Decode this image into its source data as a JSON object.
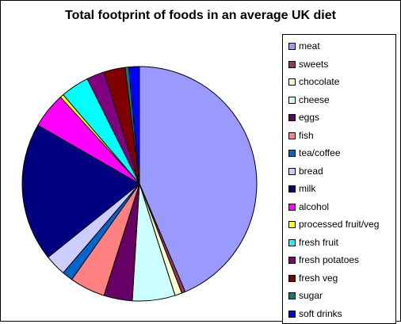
{
  "chart_data": {
    "type": "pie",
    "title": "Total footprint of foods in an average UK diet",
    "legend_position": "right",
    "slices": [
      {
        "label": "meat",
        "value": 44.5,
        "color": "#9999ff"
      },
      {
        "label": "sweets",
        "value": 0.5,
        "color": "#993366"
      },
      {
        "label": "chocolate",
        "value": 1.0,
        "color": "#ffffcc"
      },
      {
        "label": "cheese",
        "value": 6.0,
        "color": "#ccffff"
      },
      {
        "label": "eggs",
        "value": 4.0,
        "color": "#660066"
      },
      {
        "label": "fish",
        "value": 5.0,
        "color": "#ff8080"
      },
      {
        "label": "tea/coffee",
        "value": 1.5,
        "color": "#0066cc"
      },
      {
        "label": "bread",
        "value": 3.0,
        "color": "#ccccff"
      },
      {
        "label": "milk",
        "value": 19.5,
        "color": "#000080"
      },
      {
        "label": "alcohol",
        "value": 5.0,
        "color": "#ff00ff"
      },
      {
        "label": "processed fruit/veg",
        "value": 0.5,
        "color": "#ffff00"
      },
      {
        "label": "fresh fruit",
        "value": 4.0,
        "color": "#00ffff"
      },
      {
        "label": "fresh potatoes",
        "value": 2.5,
        "color": "#800080"
      },
      {
        "label": "fresh veg",
        "value": 3.0,
        "color": "#800000"
      },
      {
        "label": "sugar",
        "value": 0.5,
        "color": "#008080"
      },
      {
        "label": "soft drinks",
        "value": 1.5,
        "color": "#0000ff"
      }
    ]
  }
}
